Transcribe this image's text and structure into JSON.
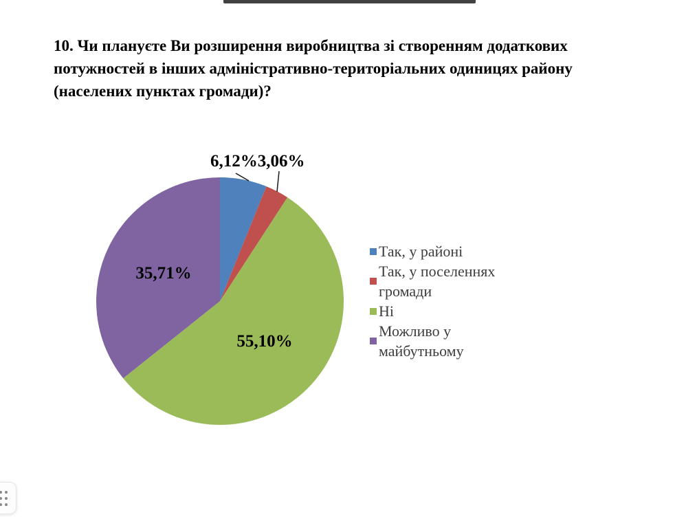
{
  "window": {
    "top_bar_color": "#424242"
  },
  "question": {
    "text": "10. Чи плануєте Ви розширення виробництва зі створенням додаткових потужностей в інших адміністративно-територіальних одиницях району (населених пунктах громади)?"
  },
  "chart_data": {
    "type": "pie",
    "title": "",
    "start_angle_deg": 0,
    "direction": "clockwise",
    "legend_position": "right",
    "slices": [
      {
        "label": "Так, у районі",
        "value": 6.12,
        "display": "6,12%",
        "color": "#4F81BD",
        "label_placement": "outside-with-leader"
      },
      {
        "label": "Так, у поселеннях громади",
        "value": 3.06,
        "display": "3,06%",
        "color": "#C0504D",
        "label_placement": "outside-with-leader"
      },
      {
        "label": "Ні",
        "value": 55.1,
        "display": "55,10%",
        "color": "#9BBB59",
        "label_placement": "inside"
      },
      {
        "label": "Можливо у майбутньому",
        "value": 35.71,
        "display": "35,71%",
        "color": "#8064A2",
        "label_placement": "inside"
      }
    ]
  }
}
